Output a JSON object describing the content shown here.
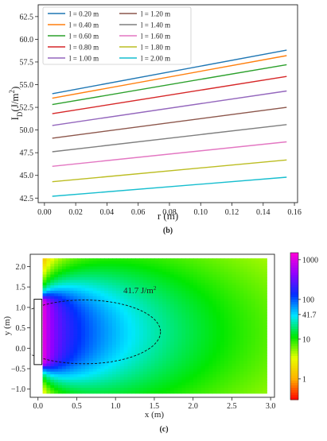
{
  "chart_data": [
    {
      "type": "line",
      "panel_label": "(b)",
      "xlabel": "r (m)",
      "ylabel": "I_D(J/m^2)",
      "ylabel_main": "I",
      "ylabel_sub": "D",
      "ylabel_rest": "(J/m",
      "ylabel_sup": "2",
      "ylabel_close": ")",
      "xlim": [
        -0.004,
        0.162
      ],
      "ylim": [
        42.0,
        63.8
      ],
      "xticks": [
        0.0,
        0.02,
        0.04,
        0.06,
        0.08,
        0.1,
        0.12,
        0.14,
        0.16
      ],
      "xtick_labels": [
        "0.00",
        "0.02",
        "0.04",
        "0.06",
        "0.08",
        "0.10",
        "0.12",
        "0.14",
        "0.16"
      ],
      "yticks": [
        42.5,
        45.0,
        47.5,
        50.0,
        52.5,
        55.0,
        57.5,
        60.0,
        62.5
      ],
      "ytick_labels": [
        "42.5",
        "45.0",
        "47.5",
        "50.0",
        "52.5",
        "55.0",
        "57.5",
        "60.0",
        "62.5"
      ],
      "legend_position": "top-left",
      "grid": false,
      "x": [
        0.005,
        0.155
      ],
      "series": [
        {
          "name": "l = 0.20 m",
          "color": "#1f77b4",
          "values": [
            54.0,
            58.8
          ]
        },
        {
          "name": "l = 0.40 m",
          "color": "#ff7f0e",
          "values": [
            53.5,
            58.2
          ]
        },
        {
          "name": "l = 0.60 m",
          "color": "#2ca02c",
          "values": [
            52.8,
            57.2
          ]
        },
        {
          "name": "l = 0.80 m",
          "color": "#d62728",
          "values": [
            51.8,
            55.9
          ]
        },
        {
          "name": "l = 1.00 m",
          "color": "#9467bd",
          "values": [
            50.5,
            54.3
          ]
        },
        {
          "name": "l = 1.20 m",
          "color": "#8c564b",
          "values": [
            49.1,
            52.5
          ]
        },
        {
          "name": "l = 1.40 m",
          "color": "#7f7f7f",
          "values": [
            47.6,
            50.6
          ]
        },
        {
          "name": "l = 1.60 m",
          "color": "#e377c2",
          "values": [
            46.0,
            48.7
          ]
        },
        {
          "name": "l = 1.80 m",
          "color": "#bcbd22",
          "values": [
            44.3,
            46.7
          ]
        },
        {
          "name": "l = 2.00 m",
          "color": "#17becf",
          "values": [
            42.7,
            44.8
          ]
        }
      ]
    },
    {
      "type": "heatmap",
      "panel_label": "(c)",
      "xlabel": "x (m)",
      "ylabel": "y (m)",
      "xlim": [
        -0.1,
        3.05
      ],
      "ylim": [
        -1.2,
        2.3
      ],
      "xticks": [
        0.0,
        0.5,
        1.0,
        1.5,
        2.0,
        2.5,
        3.0
      ],
      "xtick_labels": [
        "0.0",
        "0.5",
        "1.0",
        "1.5",
        "2.0",
        "2.5",
        "3.0"
      ],
      "yticks": [
        -1.0,
        -0.5,
        0.0,
        0.5,
        1.0,
        1.5,
        2.0
      ],
      "ytick_labels": [
        "−1.0",
        "−0.5",
        "0.0",
        "0.5",
        "1.0",
        "1.5",
        "2.0"
      ],
      "field_extent": {
        "x": [
          0.06,
          2.95
        ],
        "y": [
          -1.1,
          2.2
        ]
      },
      "lamp": {
        "x": [
          -0.05,
          0.05
        ],
        "y": [
          -0.4,
          1.2
        ]
      },
      "contour": {
        "value": 41.7,
        "label": "41.7 J/m",
        "label_sup": "2",
        "center": [
          0.6,
          0.4
        ],
        "rx": 0.98,
        "ry": 0.78
      },
      "colorbar": {
        "scale": "log",
        "range": [
          0.3,
          1500
        ],
        "ticks": [
          1000,
          100,
          41.7,
          10,
          1
        ],
        "tick_labels": [
          "1000",
          "100",
          "41.7",
          "10",
          "1"
        ],
        "colors": [
          "#ff0000",
          "#ffb000",
          "#e8ff00",
          "#00e800",
          "#00e8ff",
          "#0030ff",
          "#9000ff",
          "#ff00d8"
        ]
      }
    }
  ]
}
